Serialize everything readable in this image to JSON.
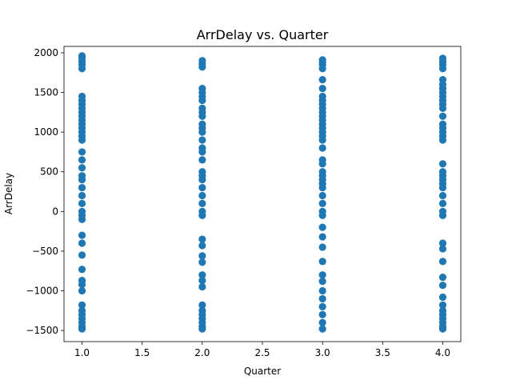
{
  "chart_data": {
    "type": "scatter",
    "title": "ArrDelay vs. Quarter",
    "xlabel": "Quarter",
    "ylabel": "ArrDelay",
    "xlim": [
      0.85,
      4.15
    ],
    "ylim": [
      -1640,
      2080
    ],
    "x_ticks": [
      1.0,
      1.5,
      2.0,
      2.5,
      3.0,
      3.5,
      4.0
    ],
    "x_tick_labels": [
      "1.0",
      "1.5",
      "2.0",
      "2.5",
      "3.0",
      "3.5",
      "4.0"
    ],
    "y_ticks": [
      -1500,
      -1000,
      -500,
      0,
      500,
      1000,
      1500,
      2000
    ],
    "y_tick_labels": [
      "−1500",
      "−1000",
      "−500",
      "0",
      "500",
      "1000",
      "1500",
      "2000"
    ],
    "grid": false,
    "marker_color": "#1f77b4",
    "series": [
      {
        "x": 1,
        "values": [
          1960,
          1930,
          1890,
          1850,
          1800,
          1450,
          1400,
          1350,
          1300,
          1250,
          1200,
          1150,
          1100,
          1050,
          1000,
          950,
          900,
          750,
          650,
          550,
          450,
          400,
          300,
          200,
          100,
          0,
          -50,
          -100,
          -300,
          -400,
          -550,
          -730,
          -870,
          -920,
          -1000,
          -1180,
          -1250,
          -1300,
          -1350,
          -1400,
          -1450,
          -1480
        ]
      },
      {
        "x": 2,
        "values": [
          1900,
          1860,
          1820,
          1550,
          1500,
          1450,
          1400,
          1300,
          1250,
          1200,
          1100,
          1050,
          1000,
          900,
          800,
          750,
          650,
          500,
          450,
          400,
          300,
          200,
          100,
          0,
          -50,
          -350,
          -430,
          -560,
          -640,
          -800,
          -870,
          -950,
          -1180,
          -1250,
          -1300,
          -1350,
          -1400,
          -1450,
          -1480
        ]
      },
      {
        "x": 3,
        "values": [
          1910,
          1880,
          1850,
          1800,
          1660,
          1550,
          1450,
          1400,
          1350,
          1300,
          1250,
          1200,
          1150,
          1100,
          1050,
          1000,
          950,
          900,
          800,
          650,
          600,
          500,
          450,
          400,
          350,
          300,
          200,
          100,
          0,
          -50,
          -200,
          -320,
          -450,
          -630,
          -800,
          -880,
          -1000,
          -1100,
          -1200,
          -1300,
          -1400,
          -1480
        ]
      },
      {
        "x": 4,
        "values": [
          1930,
          1890,
          1850,
          1800,
          1660,
          1600,
          1550,
          1500,
          1450,
          1400,
          1350,
          1300,
          1200,
          1100,
          1050,
          1000,
          950,
          900,
          600,
          500,
          450,
          400,
          350,
          300,
          200,
          100,
          0,
          -50,
          -400,
          -470,
          -630,
          -830,
          -930,
          -1080,
          -1180,
          -1250,
          -1300,
          -1350,
          -1400,
          -1450,
          -1480
        ]
      }
    ]
  }
}
